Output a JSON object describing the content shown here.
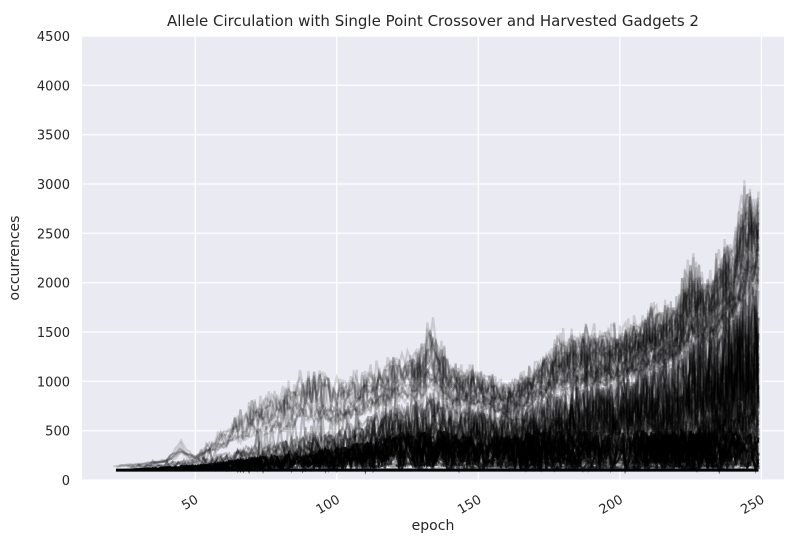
{
  "chart_data": {
    "type": "line",
    "title": "Allele Circulation with Single Point Crossover and Harvested Gadgets 2",
    "xlabel": "epoch",
    "ylabel": "occurrences",
    "xlim": [
      10,
      258
    ],
    "ylim": [
      0,
      4500
    ],
    "x_ticks": [
      50,
      100,
      150,
      200,
      250
    ],
    "x_tick_labels": [
      "50",
      "100",
      "150",
      "200",
      "250"
    ],
    "y_ticks": [
      0,
      500,
      1000,
      1500,
      2000,
      2500,
      3000,
      3500,
      4000,
      4500
    ],
    "y_tick_labels": [
      "0",
      "500",
      "1000",
      "1500",
      "2000",
      "2500",
      "3000",
      "3500",
      "4000",
      "4500"
    ],
    "grid": true,
    "legend": "none",
    "line_color": "#000000",
    "background_color": "#eaeaf2",
    "grid_color": "#ffffff",
    "envelope": {
      "note_series_count": "many overlapping translucent series",
      "x": [
        17,
        25,
        30,
        40,
        45,
        50,
        60,
        70,
        80,
        90,
        100,
        110,
        120,
        130,
        133,
        140,
        150,
        160,
        170,
        180,
        190,
        200,
        210,
        220,
        225,
        230,
        240,
        245,
        249
      ],
      "max": [
        130,
        160,
        170,
        220,
        420,
        250,
        550,
        850,
        950,
        1220,
        1050,
        1150,
        1300,
        1400,
        1720,
        1250,
        1150,
        1000,
        1200,
        1550,
        1600,
        1600,
        1800,
        1900,
        2350,
        2100,
        2600,
        3150,
        3150
      ],
      "typical": [
        120,
        130,
        140,
        160,
        180,
        190,
        230,
        280,
        320,
        380,
        400,
        500,
        600,
        650,
        700,
        600,
        600,
        550,
        650,
        700,
        750,
        800,
        900,
        950,
        1100,
        1150,
        1300,
        1500,
        1600
      ],
      "min": [
        100,
        100,
        100,
        100,
        100,
        100,
        100,
        100,
        100,
        100,
        100,
        100,
        100,
        100,
        100,
        100,
        100,
        100,
        100,
        100,
        100,
        100,
        100,
        100,
        100,
        100,
        100,
        100,
        100
      ]
    }
  }
}
